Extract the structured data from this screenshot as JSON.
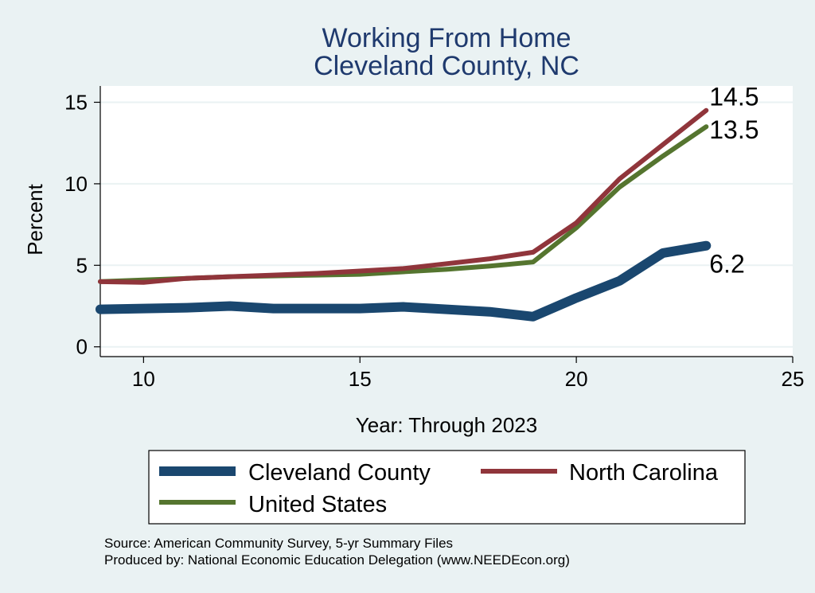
{
  "chart_data": {
    "type": "line",
    "title": "Working From Home",
    "subtitle": "Cleveland County, NC",
    "xlabel": "Year: Through 2023",
    "ylabel": "Percent",
    "xlim": [
      9,
      25
    ],
    "ylim": [
      -0.6,
      16
    ],
    "x_ticks": [
      10,
      15,
      20,
      25
    ],
    "y_ticks": [
      0,
      5,
      10,
      15
    ],
    "grid": true,
    "legend_position": "bottom",
    "series": [
      {
        "name": "Cleveland County",
        "color": "#1a476f",
        "x": [
          9,
          10,
          11,
          12,
          13,
          14,
          15,
          16,
          17,
          18,
          19,
          20,
          21,
          22,
          23
        ],
        "values": [
          2.3,
          2.35,
          2.4,
          2.5,
          2.35,
          2.35,
          2.35,
          2.45,
          2.3,
          2.15,
          1.85,
          3.0,
          4.05,
          5.75,
          6.2
        ],
        "end_label": "6.2"
      },
      {
        "name": "North Carolina",
        "color": "#90353b",
        "x": [
          9,
          10,
          11,
          12,
          13,
          14,
          15,
          16,
          17,
          18,
          19,
          20,
          21,
          22,
          23
        ],
        "values": [
          4.0,
          3.95,
          4.2,
          4.3,
          4.4,
          4.5,
          4.65,
          4.8,
          5.1,
          5.4,
          5.8,
          7.6,
          10.3,
          12.4,
          14.5
        ],
        "end_label": "14.5"
      },
      {
        "name": "United States",
        "color": "#55752f",
        "x": [
          9,
          10,
          11,
          12,
          13,
          14,
          15,
          16,
          17,
          18,
          19,
          20,
          21,
          22,
          23
        ],
        "values": [
          4.0,
          4.1,
          4.2,
          4.3,
          4.35,
          4.4,
          4.45,
          4.6,
          4.75,
          4.95,
          5.2,
          7.3,
          9.8,
          11.7,
          13.5
        ],
        "end_label": "13.5"
      }
    ]
  },
  "source_note": "Source: American Community Survey, 5-yr Summary Files",
  "producer_note": "Produced by: National Economic Education Delegation (www.NEEDEcon.org)"
}
